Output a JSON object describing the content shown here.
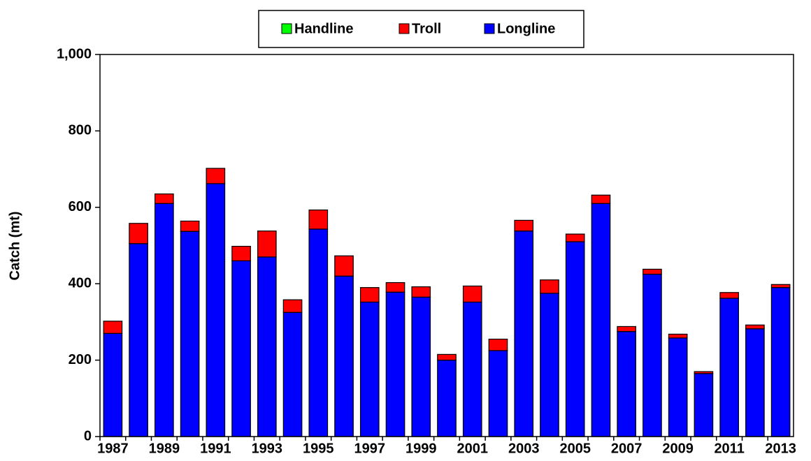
{
  "chart_data": {
    "type": "bar",
    "stacked": true,
    "y_label": "Catch (mt)",
    "categories": [
      "1987",
      null,
      "1989",
      null,
      "1991",
      null,
      "1993",
      null,
      "1995",
      null,
      "1997",
      null,
      "1999",
      null,
      "2001",
      null,
      "2003",
      null,
      "2005",
      null,
      "2007",
      null,
      "2009",
      null,
      "2011",
      null,
      "2013"
    ],
    "series": [
      {
        "name": "Handline",
        "color": "#00ff00",
        "values": [
          0,
          0,
          0,
          0,
          0,
          0,
          0,
          0,
          0,
          0,
          0,
          0,
          0,
          0,
          0,
          0,
          0,
          0,
          0,
          0,
          0,
          0,
          0,
          0,
          0,
          0,
          0
        ]
      },
      {
        "name": "Troll",
        "color": "#ff0000",
        "values": [
          32,
          53,
          25,
          27,
          40,
          38,
          68,
          33,
          50,
          53,
          38,
          25,
          27,
          15,
          42,
          30,
          28,
          35,
          20,
          22,
          13,
          13,
          10,
          5,
          15,
          10,
          8
        ]
      },
      {
        "name": "Longline",
        "color": "#0000ff",
        "values": [
          270,
          505,
          610,
          537,
          662,
          460,
          470,
          325,
          543,
          420,
          352,
          378,
          365,
          200,
          352,
          225,
          538,
          375,
          510,
          610,
          275,
          425,
          258,
          165,
          362,
          282,
          390
        ]
      }
    ],
    "ylim": [
      0,
      1000
    ],
    "yticks": [
      0,
      200,
      400,
      600,
      800,
      {
        "value": 1000,
        "label": "1,000"
      }
    ],
    "grid": false,
    "legend": "top"
  }
}
